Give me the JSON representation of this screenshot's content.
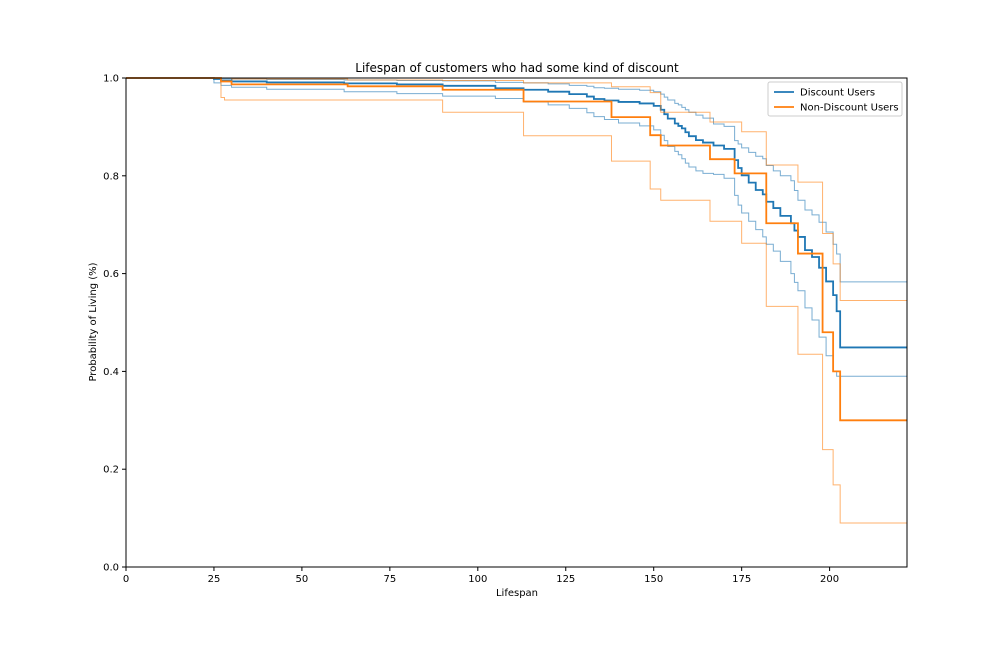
{
  "chart_data": {
    "type": "line",
    "style": "step",
    "title": "Lifespan of customers who had some kind of discount",
    "xlabel": "Lifespan",
    "ylabel": "Probability of Living (%)",
    "xlim": [
      0,
      222
    ],
    "ylim": [
      0,
      1
    ],
    "xticks": [
      0,
      25,
      50,
      75,
      100,
      125,
      150,
      175,
      200
    ],
    "yticks": [
      0.0,
      0.2,
      0.4,
      0.6,
      0.8,
      1.0
    ],
    "xtick_labels": [
      "0",
      "25",
      "50",
      "75",
      "100",
      "125",
      "150",
      "175",
      "200"
    ],
    "ytick_labels": [
      "0.0",
      "0.2",
      "0.4",
      "0.6",
      "0.8",
      "1.0"
    ],
    "grid": false,
    "legend_position": "top-right",
    "series": [
      {
        "name": "Discount Users",
        "color": "#1f77b4",
        "x": [
          0,
          25,
          27,
          30,
          40,
          62,
          77,
          90,
          105,
          113,
          120,
          126,
          131,
          133,
          136,
          140,
          146,
          150,
          152,
          153,
          154,
          156,
          157,
          158,
          159,
          160,
          162,
          164,
          167,
          170,
          173,
          174,
          175,
          177,
          179,
          181,
          182,
          184,
          186,
          189,
          190,
          191,
          193,
          195,
          197,
          199,
          201,
          202,
          203,
          222
        ],
        "y": [
          1.0,
          0.998,
          0.995,
          0.993,
          0.991,
          0.989,
          0.987,
          0.984,
          0.979,
          0.976,
          0.972,
          0.967,
          0.962,
          0.957,
          0.954,
          0.951,
          0.948,
          0.943,
          0.935,
          0.926,
          0.917,
          0.907,
          0.902,
          0.897,
          0.889,
          0.881,
          0.873,
          0.868,
          0.862,
          0.855,
          0.832,
          0.816,
          0.801,
          0.786,
          0.771,
          0.762,
          0.747,
          0.734,
          0.718,
          0.703,
          0.688,
          0.675,
          0.648,
          0.634,
          0.612,
          0.584,
          0.556,
          0.523,
          0.449,
          0.449
        ],
        "ci_lower": {
          "x": [
            0,
            25,
            27,
            30,
            40,
            62,
            77,
            90,
            105,
            113,
            120,
            126,
            131,
            133,
            136,
            140,
            146,
            150,
            152,
            153,
            154,
            156,
            157,
            158,
            159,
            160,
            162,
            164,
            167,
            170,
            173,
            174,
            175,
            177,
            179,
            181,
            182,
            184,
            186,
            189,
            190,
            191,
            193,
            195,
            197,
            199,
            201,
            202,
            203,
            222
          ],
          "y": [
            1.0,
            0.99,
            0.985,
            0.981,
            0.977,
            0.972,
            0.968,
            0.963,
            0.958,
            0.951,
            0.945,
            0.938,
            0.929,
            0.921,
            0.915,
            0.908,
            0.902,
            0.894,
            0.883,
            0.872,
            0.86,
            0.85,
            0.843,
            0.835,
            0.826,
            0.818,
            0.81,
            0.805,
            0.803,
            0.795,
            0.76,
            0.74,
            0.724,
            0.707,
            0.69,
            0.675,
            0.66,
            0.646,
            0.625,
            0.6,
            0.582,
            0.565,
            0.53,
            0.505,
            0.47,
            0.432,
            0.4,
            0.39,
            0.39,
            0.39
          ]
        },
        "ci_upper": {
          "x": [
            0,
            25,
            27,
            30,
            40,
            62,
            77,
            90,
            105,
            113,
            120,
            126,
            131,
            133,
            136,
            140,
            146,
            150,
            152,
            153,
            154,
            156,
            157,
            158,
            159,
            160,
            162,
            164,
            167,
            170,
            173,
            174,
            175,
            177,
            179,
            181,
            182,
            184,
            186,
            189,
            190,
            191,
            193,
            195,
            197,
            199,
            201,
            202,
            203,
            222
          ],
          "y": [
            1.0,
            1.0,
            0.999,
            0.998,
            0.997,
            0.996,
            0.995,
            0.994,
            0.991,
            0.99,
            0.988,
            0.985,
            0.983,
            0.98,
            0.979,
            0.977,
            0.975,
            0.972,
            0.967,
            0.961,
            0.955,
            0.948,
            0.945,
            0.94,
            0.935,
            0.93,
            0.924,
            0.918,
            0.906,
            0.901,
            0.872,
            0.865,
            0.857,
            0.848,
            0.84,
            0.835,
            0.821,
            0.81,
            0.8,
            0.79,
            0.77,
            0.75,
            0.73,
            0.72,
            0.705,
            0.685,
            0.66,
            0.64,
            0.583,
            0.583
          ]
        }
      },
      {
        "name": "Non-Discount Users",
        "color": "#ff7f0e",
        "x": [
          0,
          27,
          30,
          63,
          90,
          113,
          138,
          149,
          152,
          166,
          173,
          182,
          191,
          198,
          201,
          203,
          222
        ],
        "y": [
          1.0,
          0.993,
          0.987,
          0.983,
          0.976,
          0.952,
          0.92,
          0.883,
          0.862,
          0.834,
          0.805,
          0.703,
          0.641,
          0.48,
          0.4,
          0.3,
          0.3
        ],
        "ci_lower": {
          "x": [
            0,
            27,
            28,
            90,
            113,
            138,
            149,
            152,
            166,
            175,
            182,
            191,
            198,
            201,
            203,
            222
          ],
          "y": [
            1.0,
            0.96,
            0.955,
            0.93,
            0.882,
            0.83,
            0.773,
            0.75,
            0.707,
            0.662,
            0.533,
            0.435,
            0.24,
            0.168,
            0.09,
            0.09
          ]
        },
        "ci_upper": {
          "x": [
            0,
            27,
            30,
            63,
            90,
            113,
            138,
            149,
            152,
            166,
            175,
            182,
            191,
            198,
            201,
            203,
            222
          ],
          "y": [
            1.0,
            1.0,
            0.998,
            0.996,
            0.995,
            0.99,
            0.982,
            0.97,
            0.93,
            0.91,
            0.89,
            0.822,
            0.787,
            0.682,
            0.62,
            0.545,
            0.545
          ]
        }
      }
    ]
  }
}
